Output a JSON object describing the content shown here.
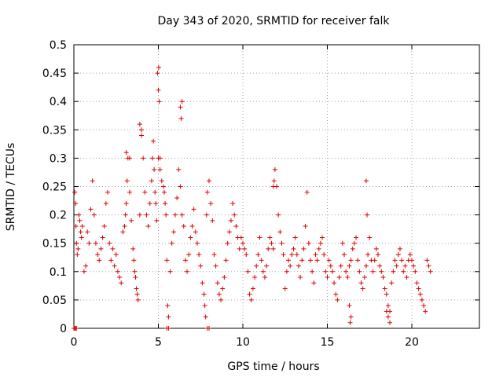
{
  "chart_data": {
    "type": "scatter",
    "title": "Day 343 of 2020, SRMTID for receiver falk",
    "xlabel": "GPS time / hours",
    "ylabel": "SRMTID / TECUs",
    "xlim": [
      0,
      24
    ],
    "ylim": [
      0,
      0.5
    ],
    "xticks": [
      0,
      5,
      10,
      15,
      20
    ],
    "xtick_labels": [
      "0",
      "5",
      "10",
      "15",
      "20"
    ],
    "yticks": [
      0,
      0.05,
      0.1,
      0.15,
      0.2,
      0.25,
      0.3,
      0.35,
      0.4,
      0.45,
      0.5
    ],
    "ytick_labels": [
      "0",
      "0.05",
      "0.1",
      "0.15",
      "0.2",
      "0.25",
      "0.3",
      "0.35",
      "0.4",
      "0.45",
      "0.5"
    ],
    "grid": true,
    "marker": "+",
    "colors": {
      "series": "#dd0000",
      "grid": "#a0a0a0",
      "axis": "#000000"
    },
    "series": [
      {
        "name": "SRMTID",
        "x": [
          0.05,
          0.1,
          0.12,
          0.15,
          0.2,
          0.25,
          0.3,
          0.35,
          0.4,
          0.45,
          0.5,
          0.6,
          0.7,
          0.8,
          0.9,
          1.0,
          1.1,
          1.2,
          1.3,
          1.4,
          1.5,
          1.6,
          1.7,
          1.8,
          1.9,
          2.0,
          2.1,
          2.2,
          2.3,
          2.4,
          2.5,
          2.6,
          2.7,
          2.8,
          2.9,
          3.0,
          3.05,
          3.1,
          3.15,
          3.2,
          3.3,
          3.4,
          3.5,
          3.55,
          3.6,
          3.65,
          3.7,
          3.75,
          3.8,
          3.9,
          4.0,
          4.1,
          4.2,
          4.3,
          4.4,
          4.5,
          4.6,
          4.65,
          4.7,
          4.75,
          4.8,
          4.85,
          4.9,
          5.0,
          5.1,
          5.2,
          5.3,
          5.35,
          5.4,
          5.45,
          5.5,
          5.55,
          5.6,
          5.7,
          5.8,
          5.9,
          6.0,
          6.1,
          6.2,
          6.3,
          6.4,
          6.5,
          6.6,
          6.7,
          6.8,
          6.9,
          7.0,
          7.1,
          7.2,
          7.3,
          7.4,
          7.5,
          7.6,
          7.7,
          7.75,
          7.8,
          7.85,
          7.9,
          8.0,
          8.1,
          8.2,
          8.3,
          8.4,
          8.5,
          8.6,
          8.7,
          8.8,
          8.9,
          9.0,
          9.1,
          9.2,
          9.3,
          9.4,
          9.5,
          9.6,
          9.7,
          9.8,
          9.9,
          10.0,
          10.1,
          10.2,
          10.3,
          10.4,
          10.5,
          10.6,
          10.7,
          10.8,
          10.9,
          11.0,
          11.1,
          11.2,
          11.3,
          11.4,
          11.5,
          11.6,
          11.7,
          11.8,
          11.9,
          12.0,
          12.1,
          12.2,
          12.3,
          12.4,
          12.5,
          12.6,
          12.7,
          12.8,
          12.9,
          13.0,
          13.1,
          13.2,
          13.3,
          13.4,
          13.5,
          13.6,
          13.7,
          13.8,
          13.9,
          14.0,
          14.1,
          14.2,
          14.3,
          14.4,
          14.5,
          14.6,
          14.7,
          14.8,
          14.9,
          15.0,
          15.1,
          15.2,
          15.3,
          15.4,
          15.5,
          15.6,
          15.7,
          15.8,
          15.9,
          16.0,
          16.1,
          16.2,
          16.3,
          16.4,
          16.5,
          16.6,
          16.7,
          16.8,
          16.9,
          17.0,
          17.1,
          17.2,
          17.3,
          17.4,
          17.5,
          17.6,
          17.7,
          17.8,
          17.9,
          18.0,
          18.1,
          18.2,
          18.3,
          18.4,
          18.5,
          18.6,
          18.7,
          18.8,
          18.9,
          19.0,
          19.1,
          19.2,
          19.3,
          19.4,
          19.5,
          19.6,
          19.7,
          19.8,
          19.9,
          20.0,
          20.1,
          20.2,
          20.3,
          20.4,
          20.5,
          20.6,
          20.7,
          20.8,
          20.9,
          21.0,
          21.1,
          4.95,
          5.0,
          5.05,
          5.02,
          5.1,
          6.3,
          6.35,
          6.4,
          3.1,
          3.3,
          3.9,
          4.0,
          11.8,
          11.85,
          17.3,
          17.35,
          16.3,
          16.35,
          16.4,
          18.5,
          18.6,
          18.7,
          0.0,
          0.05,
          0.1,
          0.15,
          5.5,
          5.6,
          7.9,
          8.0
        ],
        "y": [
          0.24,
          0.22,
          0.18,
          0.15,
          0.13,
          0.14,
          0.2,
          0.19,
          0.17,
          0.16,
          0.18,
          0.1,
          0.11,
          0.17,
          0.15,
          0.21,
          0.26,
          0.2,
          0.15,
          0.13,
          0.12,
          0.14,
          0.16,
          0.18,
          0.22,
          0.24,
          0.15,
          0.12,
          0.14,
          0.11,
          0.13,
          0.1,
          0.09,
          0.08,
          0.17,
          0.18,
          0.2,
          0.22,
          0.26,
          0.3,
          0.24,
          0.19,
          0.14,
          0.12,
          0.1,
          0.09,
          0.07,
          0.06,
          0.05,
          0.2,
          0.35,
          0.3,
          0.24,
          0.2,
          0.18,
          0.22,
          0.26,
          0.3,
          0.33,
          0.28,
          0.24,
          0.22,
          0.19,
          0.3,
          0.28,
          0.26,
          0.25,
          0.24,
          0.22,
          0.2,
          0.12,
          0.04,
          0.02,
          0.1,
          0.15,
          0.17,
          0.2,
          0.23,
          0.28,
          0.25,
          0.2,
          0.18,
          0.12,
          0.1,
          0.13,
          0.16,
          0.18,
          0.21,
          0.17,
          0.15,
          0.13,
          0.11,
          0.08,
          0.06,
          0.04,
          0.02,
          0.2,
          0.24,
          0.26,
          0.22,
          0.19,
          0.13,
          0.11,
          0.08,
          0.06,
          0.05,
          0.07,
          0.09,
          0.12,
          0.15,
          0.17,
          0.19,
          0.22,
          0.2,
          0.18,
          0.16,
          0.14,
          0.16,
          0.15,
          0.14,
          0.13,
          0.1,
          0.06,
          0.05,
          0.07,
          0.09,
          0.11,
          0.13,
          0.16,
          0.12,
          0.1,
          0.09,
          0.11,
          0.14,
          0.16,
          0.15,
          0.14,
          0.28,
          0.25,
          0.2,
          0.17,
          0.15,
          0.13,
          0.07,
          0.1,
          0.12,
          0.11,
          0.13,
          0.14,
          0.16,
          0.13,
          0.11,
          0.09,
          0.12,
          0.14,
          0.18,
          0.24,
          0.15,
          0.12,
          0.1,
          0.08,
          0.13,
          0.12,
          0.14,
          0.15,
          0.16,
          0.13,
          0.1,
          0.09,
          0.12,
          0.11,
          0.1,
          0.08,
          0.06,
          0.05,
          0.09,
          0.11,
          0.15,
          0.13,
          0.1,
          0.09,
          0.11,
          0.12,
          0.14,
          0.15,
          0.16,
          0.12,
          0.1,
          0.08,
          0.07,
          0.09,
          0.11,
          0.13,
          0.16,
          0.12,
          0.1,
          0.12,
          0.14,
          0.13,
          0.11,
          0.1,
          0.09,
          0.07,
          0.06,
          0.04,
          0.03,
          0.08,
          0.1,
          0.12,
          0.11,
          0.13,
          0.14,
          0.12,
          0.1,
          0.11,
          0.09,
          0.12,
          0.13,
          0.12,
          0.11,
          0.1,
          0.08,
          0.07,
          0.06,
          0.05,
          0.04,
          0.03,
          0.12,
          0.11,
          0.1,
          0.45,
          0.42,
          0.4,
          0.46,
          0.3,
          0.39,
          0.37,
          0.4,
          0.31,
          0.3,
          0.36,
          0.34,
          0.25,
          0.26,
          0.26,
          0.2,
          0.04,
          0.01,
          0.02,
          0.03,
          0.02,
          0.01,
          0.0,
          0.0,
          0.0,
          0.0,
          0.0,
          0.0,
          0.0,
          0.0
        ]
      }
    ]
  }
}
